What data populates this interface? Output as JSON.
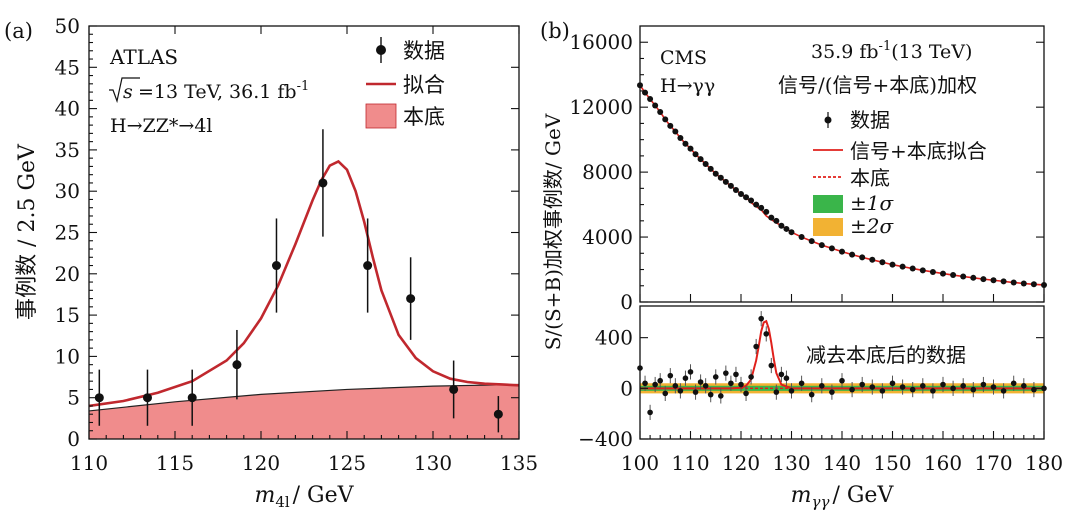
{
  "chart_data": [
    {
      "panel_label": "(a)",
      "type": "line",
      "ylabel": "事例数 / 2.5 GeV",
      "xlabel_main": "m",
      "xlabel_sub": "4l",
      "xlabel_unit": "/ GeV",
      "xlim": [
        110,
        135
      ],
      "ylim": [
        0,
        50
      ],
      "xticks": [
        "110",
        "115",
        "120",
        "125",
        "130",
        "135"
      ],
      "yticks": [
        "0",
        "5",
        "10",
        "15",
        "20",
        "25",
        "30",
        "35",
        "40",
        "45",
        "50"
      ],
      "annotations": {
        "experiment": "ATLAS",
        "sqrt_s": "s",
        "energy_lumi": "=13 TeV, 36.1 fb",
        "lumi_exp": "-1",
        "process": "H→ZZ*→4l"
      },
      "legend": {
        "data": "数据",
        "fit": "拟合",
        "background": "本底"
      },
      "colors": {
        "fit": "#c0282e",
        "background": "#f08c8c"
      },
      "data": [
        {
          "x": 110.6,
          "y": 5,
          "err": 3.4
        },
        {
          "x": 113.4,
          "y": 5,
          "err": 3.4
        },
        {
          "x": 116.0,
          "y": 5,
          "err": 3.4
        },
        {
          "x": 118.6,
          "y": 9,
          "err": 4.2
        },
        {
          "x": 120.9,
          "y": 21,
          "err": 5.7
        },
        {
          "x": 123.6,
          "y": 31,
          "err": 6.5
        },
        {
          "x": 126.2,
          "y": 21,
          "err": 5.7
        },
        {
          "x": 128.7,
          "y": 17,
          "err": 5.0
        },
        {
          "x": 131.2,
          "y": 6,
          "err": 3.5
        },
        {
          "x": 133.8,
          "y": 3,
          "err": 2.2
        }
      ],
      "fit": {
        "x": [
          110,
          112,
          114,
          116,
          118,
          119,
          120,
          121,
          122,
          123,
          123.5,
          124,
          124.5,
          125,
          125.5,
          126,
          126.5,
          127,
          128,
          129,
          130,
          131,
          132,
          133,
          134,
          135
        ],
        "y": [
          4.0,
          4.6,
          5.6,
          7.0,
          9.5,
          11.6,
          14.6,
          18.6,
          23.6,
          28.9,
          31.3,
          33.1,
          33.6,
          32.6,
          30.0,
          26.3,
          22.0,
          18.0,
          12.6,
          9.8,
          8.2,
          7.3,
          6.9,
          6.7,
          6.6,
          6.5
        ]
      },
      "background": {
        "x": [
          110,
          115,
          120,
          125,
          130,
          135
        ],
        "y": [
          3.4,
          4.5,
          5.4,
          6.0,
          6.4,
          6.6
        ]
      }
    },
    {
      "panel_label": "(b)",
      "type": "scatter",
      "ylabel": "S/(S+B)加权事例数/ GeV",
      "xlabel_main": "m",
      "xlabel_sub": "γγ",
      "xlabel_unit": "/ GeV",
      "xlim": [
        100,
        180
      ],
      "xticks": [
        "100",
        "110",
        "120",
        "130",
        "140",
        "150",
        "160",
        "170",
        "180"
      ],
      "top": {
        "ylim": [
          0,
          17000
        ],
        "yticks": [
          "0",
          "4000",
          "8000",
          "12000",
          "16000"
        ],
        "annotations": {
          "experiment": "CMS",
          "process": "H→γγ",
          "lumi_a": "35.9 fb",
          "lumi_exp": "-1",
          "lumi_b": "(13 TeV)",
          "weighting": "信号/(信号+本底)加权"
        },
        "legend": {
          "data": "数据",
          "sb_fit": "信号+本底拟合",
          "background": "本底",
          "one_sigma": "±1σ",
          "two_sigma": "±2σ"
        },
        "colors": {
          "fit": "#e0201b",
          "one_sigma": "#3ab54a",
          "two_sigma": "#f2b233"
        },
        "data_x": [
          100,
          101,
          102,
          103,
          104,
          105,
          106,
          107,
          108,
          109,
          110,
          111,
          112,
          113,
          114,
          115,
          116,
          117,
          118,
          119,
          120,
          121,
          122,
          123,
          124,
          125,
          126,
          127,
          128,
          129,
          130,
          132,
          134,
          136,
          138,
          140,
          142,
          144,
          146,
          148,
          150,
          152,
          154,
          156,
          158,
          160,
          162,
          164,
          166,
          168,
          170,
          172,
          174,
          176,
          178,
          180
        ],
        "data_y": [
          13350,
          12900,
          12500,
          12100,
          11700,
          11250,
          10850,
          10500,
          10100,
          9750,
          9450,
          9100,
          8800,
          8500,
          8200,
          7900,
          7650,
          7400,
          7150,
          6900,
          6650,
          6450,
          6250,
          6000,
          5800,
          5550,
          5200,
          5000,
          4700,
          4500,
          4300,
          4000,
          3750,
          3500,
          3300,
          3100,
          2920,
          2750,
          2600,
          2450,
          2300,
          2180,
          2060,
          1950,
          1850,
          1750,
          1660,
          1570,
          1490,
          1410,
          1340,
          1270,
          1200,
          1140,
          1090,
          1050
        ]
      },
      "bottom": {
        "ylim": [
          -400,
          650
        ],
        "yticks": [
          "400",
          "0",
          "−400"
        ],
        "label": "减去本底后的数据",
        "data_x": [
          100,
          101,
          102,
          103,
          104,
          105,
          106,
          107,
          108,
          109,
          110,
          111,
          112,
          113,
          114,
          115,
          116,
          117,
          118,
          119,
          120,
          121,
          122,
          123,
          124,
          125,
          126,
          127,
          128,
          129,
          130,
          132,
          134,
          136,
          138,
          140,
          142,
          144,
          146,
          148,
          150,
          152,
          154,
          156,
          158,
          160,
          162,
          164,
          166,
          168,
          170,
          172,
          174,
          176,
          178,
          180
        ],
        "data_y": [
          160,
          40,
          -190,
          30,
          60,
          -40,
          100,
          20,
          -20,
          80,
          130,
          -30,
          50,
          20,
          -50,
          90,
          -60,
          120,
          40,
          110,
          30,
          -40,
          90,
          330,
          550,
          430,
          180,
          -30,
          110,
          80,
          -20,
          40,
          -50,
          20,
          -30,
          60,
          -10,
          30,
          10,
          -20,
          40,
          10,
          -10,
          20,
          -20,
          30,
          0,
          20,
          -10,
          30,
          10,
          -20,
          40,
          20,
          -10,
          0
        ],
        "fit": {
          "x": [
            100,
            118,
            120,
            121,
            122,
            123,
            123.5,
            124,
            124.5,
            125,
            125.5,
            126,
            126.5,
            127,
            128,
            130,
            180
          ],
          "y": [
            0,
            0,
            5,
            20,
            70,
            220,
            330,
            450,
            520,
            530,
            470,
            360,
            230,
            120,
            30,
            0,
            0
          ]
        }
      }
    }
  ]
}
